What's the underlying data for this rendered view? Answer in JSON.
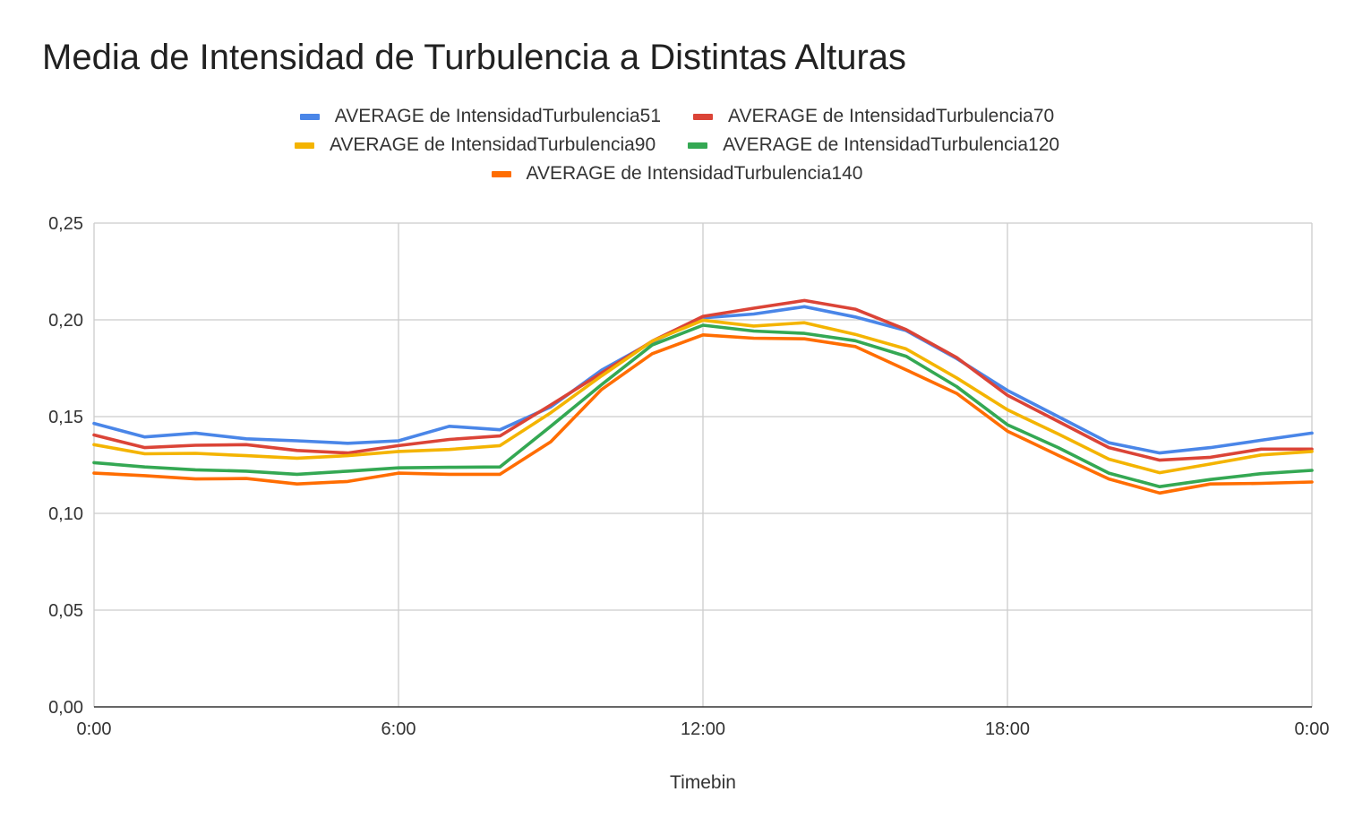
{
  "chart_data": {
    "type": "line",
    "title": "Media de Intensidad de Turbulencia a Distintas Alturas",
    "xlabel": "Timebin",
    "ylabel": "",
    "ylim": [
      0,
      0.25
    ],
    "yticks": [
      0,
      0.05,
      0.1,
      0.15,
      0.2,
      0.25
    ],
    "ytick_labels": [
      "0,00",
      "0,05",
      "0,10",
      "0,15",
      "0,20",
      "0,25"
    ],
    "xlim": [
      0,
      24
    ],
    "xticks": [
      0,
      6,
      12,
      18,
      24
    ],
    "xtick_labels": [
      "0:00",
      "6:00",
      "12:00",
      "18:00",
      "0:00"
    ],
    "x": [
      0,
      1,
      2,
      3,
      4,
      5,
      6,
      7,
      8,
      9,
      10,
      11,
      12,
      13,
      14,
      15,
      16,
      17,
      18,
      19,
      20,
      21,
      22,
      23,
      24
    ],
    "grid": true,
    "legend_position": "top",
    "series": [
      {
        "name": "AVERAGE de IntensidadTurbulencia51",
        "color": "#4a86e8",
        "values": [
          0.1465,
          0.1395,
          0.1415,
          0.1385,
          0.1375,
          0.1362,
          0.1375,
          0.145,
          0.1432,
          0.155,
          0.174,
          0.1885,
          0.201,
          0.203,
          0.2068,
          0.2015,
          0.1945,
          0.18,
          0.1635,
          0.15,
          0.1365,
          0.1312,
          0.134,
          0.1378,
          0.1415
        ]
      },
      {
        "name": "AVERAGE de IntensidadTurbulencia70",
        "color": "#db4437",
        "values": [
          0.1405,
          0.134,
          0.1352,
          0.1355,
          0.1325,
          0.1312,
          0.135,
          0.1382,
          0.14,
          0.156,
          0.1725,
          0.189,
          0.2018,
          0.206,
          0.21,
          0.2055,
          0.195,
          0.1805,
          0.161,
          0.1475,
          0.134,
          0.1275,
          0.129,
          0.1332,
          0.1332
        ]
      },
      {
        "name": "AVERAGE de IntensidadTurbulencia90",
        "color": "#f4b400",
        "values": [
          0.1355,
          0.1308,
          0.131,
          0.1298,
          0.1285,
          0.1298,
          0.132,
          0.133,
          0.135,
          0.152,
          0.171,
          0.189,
          0.1998,
          0.1968,
          0.1985,
          0.1925,
          0.185,
          0.17,
          0.1535,
          0.141,
          0.128,
          0.121,
          0.1255,
          0.1302,
          0.132
        ]
      },
      {
        "name": "AVERAGE de IntensidadTurbulencia120",
        "color": "#34a853",
        "values": [
          0.1262,
          0.124,
          0.1225,
          0.1218,
          0.1202,
          0.1218,
          0.1235,
          0.1238,
          0.124,
          0.145,
          0.1665,
          0.187,
          0.1972,
          0.1942,
          0.193,
          0.1892,
          0.1812,
          0.1655,
          0.1458,
          0.134,
          0.1208,
          0.1138,
          0.1175,
          0.1205,
          0.1222
        ]
      },
      {
        "name": "AVERAGE de IntensidadTurbulencia140",
        "color": "#ff6d01",
        "values": [
          0.1208,
          0.1195,
          0.1178,
          0.118,
          0.1152,
          0.1165,
          0.1208,
          0.1202,
          0.1202,
          0.137,
          0.164,
          0.1825,
          0.1922,
          0.1905,
          0.1902,
          0.1862,
          0.1742,
          0.162,
          0.1425,
          0.13,
          0.1178,
          0.1105,
          0.1152,
          0.1155,
          0.1162
        ]
      }
    ]
  }
}
